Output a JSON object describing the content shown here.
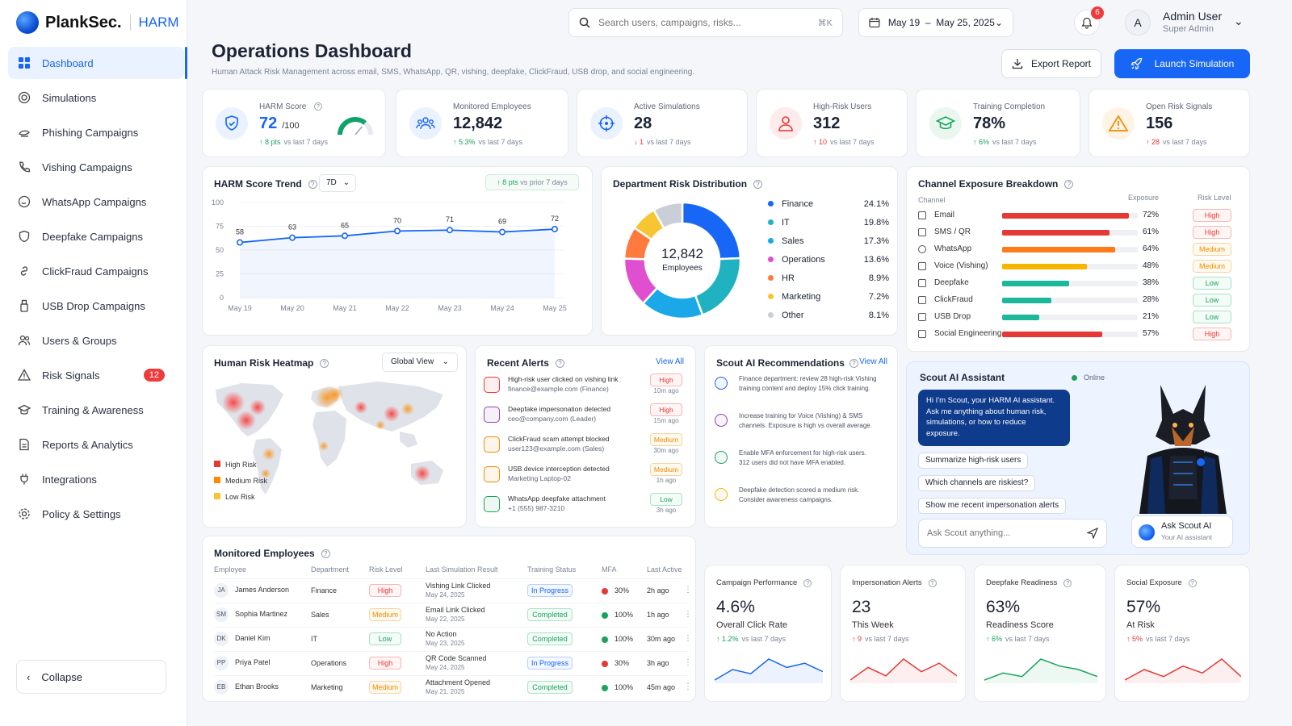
{
  "app": {
    "name": "PlankSec.",
    "product": "HARM"
  },
  "sidebar": {
    "items": [
      {
        "label": "Dashboard"
      },
      {
        "label": "Simulations"
      },
      {
        "label": "Phishing Campaigns"
      },
      {
        "label": "Vishing Campaigns"
      },
      {
        "label": "WhatsApp Campaigns"
      },
      {
        "label": "Deepfake Campaigns"
      },
      {
        "label": "ClickFraud Campaigns"
      },
      {
        "label": "USB Drop Campaigns"
      },
      {
        "label": "Users & Groups"
      },
      {
        "label": "Risk Signals",
        "badge": "12"
      },
      {
        "label": "Training & Awareness"
      },
      {
        "label": "Reports & Analytics"
      },
      {
        "label": "Integrations"
      },
      {
        "label": "Policy & Settings"
      }
    ],
    "collapse_label": "Collapse"
  },
  "topbar": {
    "search_placeholder": "Search users, campaigns, risks...",
    "search_shortcut": "⌘K",
    "date_range": "May 19  –  May 25, 2025",
    "notifications": "6",
    "avatar_initial": "A",
    "user_name": "Admin User",
    "user_role": "Super Admin"
  },
  "page": {
    "title": "Operations Dashboard",
    "subtitle": "Human Attack Risk Management across email, SMS, WhatsApp, QR, vishing, deepfake, ClickFraud, USB drop, and social engineering.",
    "export_label": "Export Report",
    "launch_label": "Launch Simulation"
  },
  "kpis": [
    {
      "label": "HARM Score",
      "value": "72",
      "suffix": "/100",
      "delta": "8 pts",
      "delta_note": "vs last 7 days",
      "direction": "up",
      "color": "#1766f5",
      "gauge": 0.72
    },
    {
      "label": "Monitored Employees",
      "value": "12,842",
      "delta": "5.3%",
      "delta_note": "vs last 7 days",
      "direction": "up",
      "color": "#1766f5"
    },
    {
      "label": "Active Simulations",
      "value": "28",
      "delta": "1",
      "delta_note": "vs last 7 days",
      "direction": "down",
      "color": "#1766f5"
    },
    {
      "label": "High-Risk Users",
      "value": "312",
      "delta": "10",
      "delta_note": "vs last 7 days",
      "direction": "up-bad",
      "color": "#e53935"
    },
    {
      "label": "Training Completion",
      "value": "78%",
      "delta": "6%",
      "delta_note": "vs last 7 days",
      "direction": "up",
      "color": "#1aa35c"
    },
    {
      "label": "Open Risk Signals",
      "value": "156",
      "delta": "28",
      "delta_note": "vs last 7 days",
      "direction": "up-bad",
      "color": "#f08a00"
    }
  ],
  "trend": {
    "title": "HARM Score Trend",
    "period": "7D",
    "badge_value": "8 pts",
    "badge_note": "vs prior 7 days",
    "chart_data": {
      "type": "line",
      "x": [
        "May 19",
        "May 20",
        "May 21",
        "May 22",
        "May 23",
        "May 24",
        "May 25"
      ],
      "values": [
        58,
        63,
        65,
        70,
        71,
        69,
        72
      ],
      "ylim": [
        0,
        100
      ],
      "yticks": [
        0,
        25,
        50,
        75,
        100
      ]
    }
  },
  "department": {
    "title": "Department Risk Distribution",
    "center_value": "12,842",
    "center_label": "Employees",
    "chart_data": {
      "type": "pie",
      "categories": [
        "Finance",
        "IT",
        "Sales",
        "Operations",
        "HR",
        "Marketing",
        "Other"
      ],
      "values": [
        24.1,
        19.8,
        17.3,
        13.6,
        8.9,
        7.2,
        8.1
      ],
      "labels": [
        "24.1%",
        "19.8%",
        "17.3%",
        "13.6%",
        "8.9%",
        "7.2%",
        "8.1%"
      ],
      "colors": [
        "#1766f5",
        "#20b2c0",
        "#1aa8e8",
        "#e04fd0",
        "#ff7a3d",
        "#f7c531",
        "#c9ced8"
      ]
    }
  },
  "channels": {
    "title": "Channel Exposure Breakdown",
    "col_channel": "Channel",
    "col_exposure": "Exposure",
    "col_risk": "Risk Level",
    "chart_data": {
      "type": "bar",
      "categories": [
        "Email",
        "SMS / QR",
        "WhatsApp",
        "Voice (Vishing)",
        "Deepfake",
        "ClickFraud",
        "USB Drop",
        "Social Engineering"
      ],
      "values": [
        72,
        61,
        64,
        48,
        38,
        28,
        21,
        57
      ],
      "labels": [
        "72%",
        "61%",
        "64%",
        "48%",
        "38%",
        "28%",
        "21%",
        "57%"
      ],
      "risk": [
        "High",
        "High",
        "Medium",
        "Medium",
        "Low",
        "Low",
        "Low",
        "High"
      ],
      "colors": [
        "#e53935",
        "#e53935",
        "#ff7a1a",
        "#f7b500",
        "#1cb89c",
        "#1cb89c",
        "#1cb89c",
        "#e53935"
      ]
    }
  },
  "heatmap": {
    "title": "Human Risk Heatmap",
    "view": "Global View",
    "legend": [
      "High Risk",
      "Medium Risk",
      "Low Risk"
    ]
  },
  "alerts": {
    "title": "Recent Alerts",
    "view_all": "View All",
    "items": [
      {
        "title": "High-risk user clicked on vishing link",
        "sub": "finance@example.com (Finance)",
        "level": "High",
        "time": "10m ago"
      },
      {
        "title": "Deepfake impersonation detected",
        "sub": "ceo@company.com (Leader)",
        "level": "High",
        "time": "15m ago"
      },
      {
        "title": "ClickFraud scam attempt blocked",
        "sub": "user123@example.com (Sales)",
        "level": "Medium",
        "time": "30m ago"
      },
      {
        "title": "USB device interception detected",
        "sub": "Marketing Laptop-02",
        "level": "Medium",
        "time": "1h ago"
      },
      {
        "title": "WhatsApp deepfake attachment",
        "sub": "+1 (555) 987-3210",
        "level": "Low",
        "time": "3h ago"
      }
    ]
  },
  "recs": {
    "title": "Scout AI Recommendations",
    "view_all": "View All",
    "items": [
      {
        "line1": "Finance department: review 28 high-risk Vishing",
        "line2": "training content and deploy 15% click training."
      },
      {
        "line1": "Increase training for Voice (Vishing) & SMS",
        "line2": "channels. Exposure is high vs overall average."
      },
      {
        "line1": "Enable MFA enforcement for high-risk users.",
        "line2": "312 users did not have MFA enabled."
      },
      {
        "line1": "Deepfake detection scored a medium risk.",
        "line2": "Consider awareness campaigns."
      }
    ]
  },
  "assistant": {
    "title": "Scout AI Assistant",
    "status": "Online",
    "bubble_lines": [
      "Hi I'm Scout, your HARM AI assistant.",
      "Ask me anything about human risk,",
      "simulations, or how to reduce",
      "exposure."
    ],
    "chips": [
      "Summarize high-risk users",
      "Which channels are riskiest?",
      "Show me recent impersonation alerts"
    ],
    "input_placeholder": "Ask Scout anything...",
    "ask_title": "Ask Scout AI",
    "ask_sub": "Your AI assistant",
    "mascot_brand": "PlankSec."
  },
  "employees": {
    "title": "Monitored Employees",
    "columns": [
      "Employee",
      "Department",
      "Risk Level",
      "Last Simulation Result",
      "Training Status",
      "MFA",
      "Last Active"
    ],
    "rows": [
      {
        "initials": "JA",
        "name": "James Anderson",
        "dept": "Finance",
        "risk": "High",
        "sim": "Vishing Link Clicked",
        "sim_date": "May 24, 2025",
        "training": "In Progress",
        "mfa": "30%",
        "mfa_color": "#e53935",
        "active": "2h ago"
      },
      {
        "initials": "SM",
        "name": "Sophia Martinez",
        "dept": "Sales",
        "risk": "Medium",
        "sim": "Email Link Clicked",
        "sim_date": "May 22, 2025",
        "training": "Completed",
        "mfa": "100%",
        "mfa_color": "#1aa35c",
        "active": "1h ago"
      },
      {
        "initials": "DK",
        "name": "Daniel Kim",
        "dept": "IT",
        "risk": "Low",
        "sim": "No Action",
        "sim_date": "May 23, 2025",
        "training": "Completed",
        "mfa": "100%",
        "mfa_color": "#1aa35c",
        "active": "30m ago"
      },
      {
        "initials": "PP",
        "name": "Priya Patel",
        "dept": "Operations",
        "risk": "High",
        "sim": "QR Code Scanned",
        "sim_date": "May 24, 2025",
        "training": "In Progress",
        "mfa": "30%",
        "mfa_color": "#e53935",
        "active": "3h ago"
      },
      {
        "initials": "EB",
        "name": "Ethan Brooks",
        "dept": "Marketing",
        "risk": "Medium",
        "sim": "Attachment Opened",
        "sim_date": "May 21, 2025",
        "training": "Completed",
        "mfa": "100%",
        "mfa_color": "#1aa35c",
        "active": "45m ago"
      }
    ]
  },
  "mini_cards": [
    {
      "label": "Campaign Performance",
      "value": "4.6%",
      "sub": "Overall Click Rate",
      "delta": "1.2%",
      "delta_note": "vs last 7 days",
      "direction": "up",
      "color": "#1766f5",
      "chart_data": {
        "type": "line",
        "values": [
          3,
          4,
          3.6,
          5,
          4.2,
          4.6,
          3.8
        ]
      }
    },
    {
      "label": "Impersonation Alerts",
      "value": "23",
      "sub": "This Week",
      "delta": "9",
      "delta_note": "vs last 7 days",
      "direction": "up-bad",
      "color": "#e53935",
      "chart_data": {
        "type": "line",
        "values": [
          2,
          5,
          3,
          7,
          4,
          6,
          3
        ]
      }
    },
    {
      "label": "Deepfake Readiness",
      "value": "63%",
      "sub": "Readiness Score",
      "delta": "6%",
      "delta_note": "vs last 7 days",
      "direction": "up",
      "color": "#1aa35c",
      "chart_data": {
        "type": "line",
        "values": [
          3,
          4,
          3.5,
          6,
          5,
          4.5,
          3.5
        ]
      }
    },
    {
      "label": "Social Exposure",
      "value": "57%",
      "sub": "At Risk",
      "delta": "5%",
      "delta_note": "vs last 7 days",
      "direction": "up-bad",
      "color": "#e53935",
      "chart_data": {
        "type": "line",
        "values": [
          3,
          4.5,
          3.5,
          5,
          4,
          6,
          3.5
        ]
      }
    }
  ]
}
